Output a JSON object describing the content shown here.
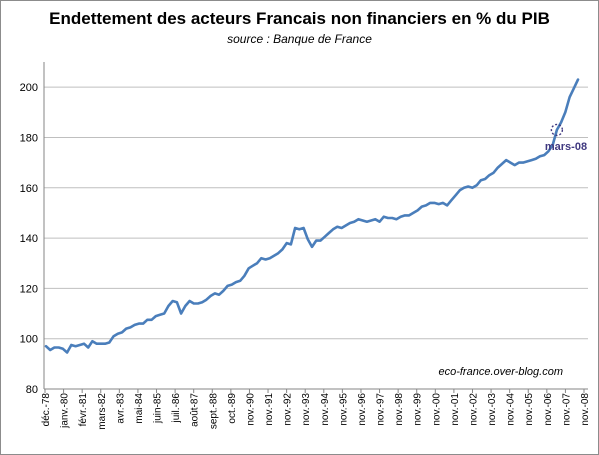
{
  "chart_data": {
    "type": "line",
    "title": "Endettement des acteurs Francais non financiers en % du PIB",
    "subtitle": "source : Banque de France",
    "ylim": [
      80,
      210
    ],
    "y_ticks": [
      80,
      100,
      120,
      140,
      160,
      180,
      200
    ],
    "grid": true,
    "x_tick_labels": [
      "déc.-78",
      "janv.-80",
      "févr.-81",
      "mars-82",
      "avr.-83",
      "mai-84",
      "juin-85",
      "juil.-86",
      "août-87",
      "sept.-88",
      "oct.-89",
      "nov.-90",
      "nov.-91",
      "nov.-92",
      "nov.-93",
      "nov.-94",
      "nov.-95",
      "nov.-96",
      "nov.-97",
      "nov.-98",
      "nov.-99",
      "nov.-00",
      "nov.-01",
      "nov.-02",
      "nov.-03",
      "nov.-04",
      "nov.-05",
      "nov.-06",
      "nov.-07",
      "nov.-08"
    ],
    "series": [
      {
        "color": "#4a7ebb",
        "values": [
          97,
          95.5,
          96.5,
          96.5,
          96,
          94.5,
          97.5,
          97,
          97.5,
          98,
          96.5,
          99,
          98,
          98,
          98,
          98.5,
          101,
          102,
          102.5,
          104,
          104.5,
          105.5,
          106,
          106,
          107.5,
          107.5,
          109,
          109.5,
          110,
          113,
          115,
          114.5,
          110,
          113,
          115,
          114,
          114,
          114.5,
          115.5,
          117,
          118,
          117.5,
          119,
          121,
          121.5,
          122.5,
          123,
          125,
          128,
          129,
          130,
          132,
          131.5,
          132,
          133,
          134,
          135.5,
          138,
          137.5,
          144,
          143.5,
          144,
          139.5,
          136.5,
          139,
          139,
          140.5,
          142,
          143.5,
          144.5,
          144,
          145,
          146,
          146.5,
          147.5,
          147,
          146.5,
          147,
          147.5,
          146.5,
          148.5,
          148,
          148,
          147.5,
          148.5,
          149,
          149,
          150,
          151,
          152.5,
          153,
          154,
          154,
          153.5,
          154,
          153,
          155,
          157,
          159,
          160,
          160.5,
          160,
          161,
          163,
          163.5,
          165,
          166,
          168,
          169.5,
          171,
          170,
          169,
          170,
          170,
          170.5,
          171,
          171.5,
          172.5,
          173,
          174.5,
          177,
          183,
          186,
          190,
          196,
          199.5,
          203
        ]
      }
    ],
    "annotations": [
      {
        "text": "mars-08",
        "color": "#403980"
      },
      {
        "text": "eco-france.over-blog.com"
      }
    ]
  }
}
